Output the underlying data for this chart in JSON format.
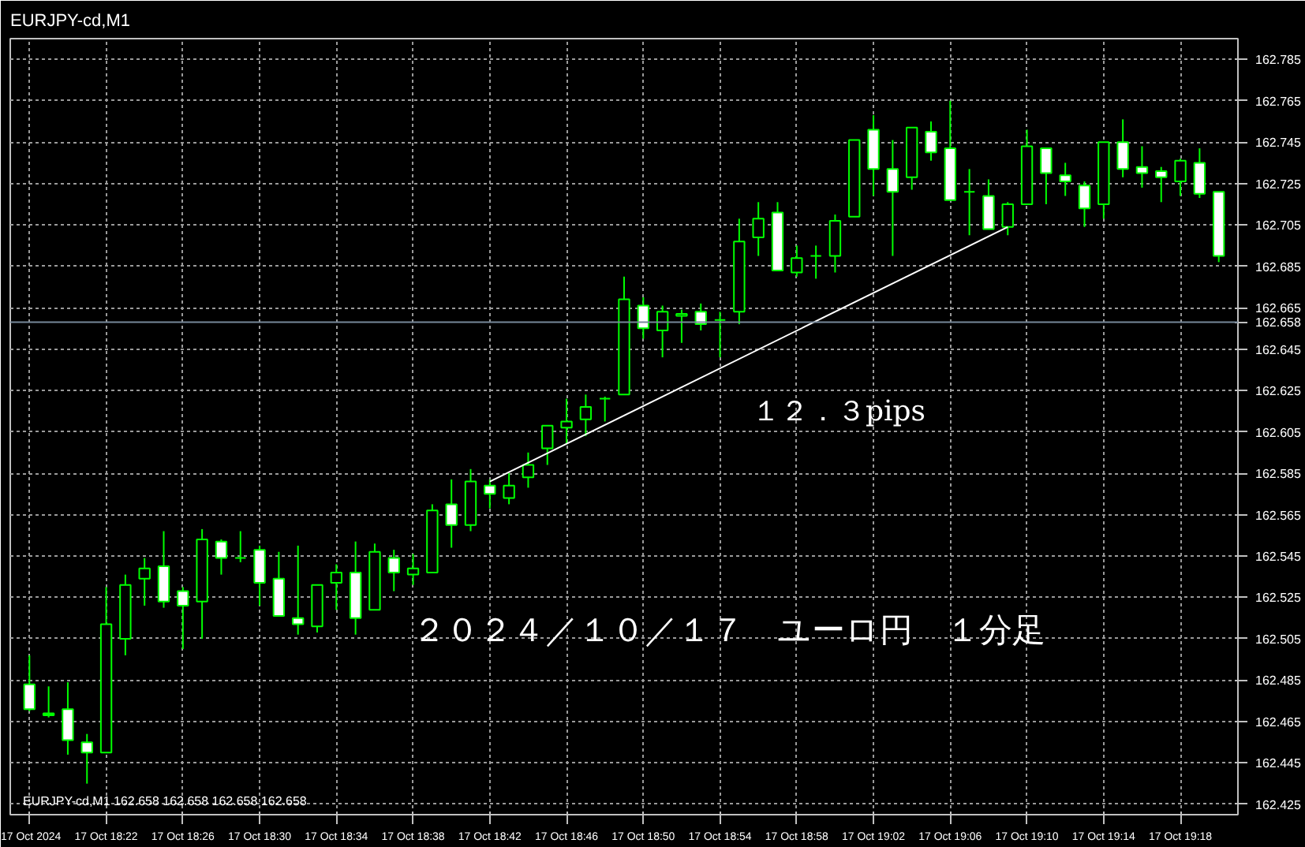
{
  "chart_data": {
    "type": "candlestick",
    "title": "EURJPY-cd,M1",
    "subtitle": "EURJPY-cd,M1  162.658 162.658 162.658 162.658",
    "x": [
      "2024-10-17T18:18",
      "2024-10-17T18:19",
      "2024-10-17T18:20",
      "2024-10-17T18:21",
      "2024-10-17T18:22",
      "2024-10-17T18:23",
      "2024-10-17T18:24",
      "2024-10-17T18:25",
      "2024-10-17T18:26",
      "2024-10-17T18:27",
      "2024-10-17T18:28",
      "2024-10-17T18:29",
      "2024-10-17T18:30",
      "2024-10-17T18:31",
      "2024-10-17T18:32",
      "2024-10-17T18:33",
      "2024-10-17T18:34",
      "2024-10-17T18:35",
      "2024-10-17T18:36",
      "2024-10-17T18:37",
      "2024-10-17T18:38",
      "2024-10-17T18:39",
      "2024-10-17T18:40",
      "2024-10-17T18:41",
      "2024-10-17T18:42",
      "2024-10-17T18:43",
      "2024-10-17T18:44",
      "2024-10-17T18:45",
      "2024-10-17T18:46",
      "2024-10-17T18:47",
      "2024-10-17T18:48",
      "2024-10-17T18:49",
      "2024-10-17T18:50",
      "2024-10-17T18:51",
      "2024-10-17T18:52",
      "2024-10-17T18:53",
      "2024-10-17T18:54",
      "2024-10-17T18:55",
      "2024-10-17T18:56",
      "2024-10-17T18:57",
      "2024-10-17T18:58",
      "2024-10-17T18:59",
      "2024-10-17T19:00",
      "2024-10-17T19:01",
      "2024-10-17T19:02",
      "2024-10-17T19:03",
      "2024-10-17T19:04",
      "2024-10-17T19:05",
      "2024-10-17T19:06",
      "2024-10-17T19:07",
      "2024-10-17T19:08",
      "2024-10-17T19:09",
      "2024-10-17T19:10",
      "2024-10-17T19:11",
      "2024-10-17T19:12",
      "2024-10-17T19:13",
      "2024-10-17T19:14",
      "2024-10-17T19:15",
      "2024-10-17T19:16",
      "2024-10-17T19:17",
      "2024-10-17T19:18",
      "2024-10-17T19:19",
      "2024-10-17T19:20"
    ],
    "ohlc": [
      [
        162.483,
        162.497,
        162.47,
        162.471
      ],
      [
        162.468,
        162.482,
        162.467,
        162.469
      ],
      [
        162.471,
        162.484,
        162.449,
        162.456
      ],
      [
        162.455,
        162.459,
        162.435,
        162.45
      ],
      [
        162.45,
        162.53,
        162.45,
        162.512
      ],
      [
        162.505,
        162.536,
        162.497,
        162.531
      ],
      [
        162.534,
        162.544,
        162.521,
        162.539
      ],
      [
        162.54,
        162.557,
        162.52,
        162.523
      ],
      [
        162.528,
        162.53,
        162.5,
        162.521
      ],
      [
        162.523,
        162.558,
        162.505,
        162.553
      ],
      [
        162.552,
        162.553,
        162.536,
        162.544
      ],
      [
        162.544,
        162.557,
        162.542,
        162.544
      ],
      [
        162.548,
        162.55,
        162.521,
        162.532
      ],
      [
        162.534,
        162.547,
        162.516,
        162.516
      ],
      [
        162.515,
        162.55,
        162.507,
        162.512
      ],
      [
        162.511,
        162.531,
        162.508,
        162.531
      ],
      [
        162.532,
        162.541,
        162.519,
        162.537
      ],
      [
        162.537,
        162.552,
        162.507,
        162.515
      ],
      [
        162.519,
        162.551,
        162.519,
        162.547
      ],
      [
        162.544,
        162.548,
        162.528,
        162.537
      ],
      [
        162.536,
        162.546,
        162.531,
        162.539
      ],
      [
        162.537,
        162.57,
        162.537,
        162.567
      ],
      [
        162.57,
        162.582,
        162.549,
        162.56
      ],
      [
        162.56,
        162.587,
        162.557,
        162.581
      ],
      [
        162.579,
        162.582,
        162.568,
        162.575
      ],
      [
        162.573,
        162.585,
        162.57,
        162.579
      ],
      [
        162.583,
        162.595,
        162.578,
        162.589
      ],
      [
        162.597,
        162.608,
        162.589,
        162.608
      ],
      [
        162.607,
        162.621,
        162.599,
        162.61
      ],
      [
        162.611,
        162.623,
        162.603,
        162.617
      ],
      [
        162.621,
        162.622,
        162.61,
        162.621
      ],
      [
        162.623,
        162.68,
        162.623,
        162.669
      ],
      [
        162.666,
        162.67,
        162.65,
        162.655
      ],
      [
        162.654,
        162.666,
        162.641,
        162.663
      ],
      [
        162.661,
        162.664,
        162.648,
        162.662
      ],
      [
        162.663,
        162.667,
        162.654,
        162.657
      ],
      [
        162.659,
        162.663,
        162.641,
        162.659
      ],
      [
        162.663,
        162.708,
        162.657,
        162.697
      ],
      [
        162.699,
        162.716,
        162.69,
        162.708
      ],
      [
        162.711,
        162.716,
        162.683,
        162.683
      ],
      [
        162.682,
        162.695,
        162.68,
        162.689
      ],
      [
        162.69,
        162.695,
        162.679,
        162.69
      ],
      [
        162.69,
        162.71,
        162.682,
        162.707
      ],
      [
        162.709,
        162.746,
        162.709,
        162.746
      ],
      [
        162.751,
        162.758,
        162.719,
        162.732
      ],
      [
        162.732,
        162.746,
        162.69,
        162.721
      ],
      [
        162.728,
        162.752,
        162.722,
        162.752
      ],
      [
        162.75,
        162.755,
        162.736,
        162.74
      ],
      [
        162.742,
        162.765,
        162.717,
        162.717
      ],
      [
        162.721,
        162.732,
        162.7,
        162.721
      ],
      [
        162.719,
        162.727,
        162.703,
        162.703
      ],
      [
        162.704,
        162.716,
        162.7,
        162.715
      ],
      [
        162.715,
        162.751,
        162.715,
        162.743
      ],
      [
        162.742,
        162.742,
        162.715,
        162.73
      ],
      [
        162.729,
        162.735,
        162.719,
        162.726
      ],
      [
        162.724,
        162.726,
        162.704,
        162.713
      ],
      [
        162.715,
        162.745,
        162.708,
        162.745
      ],
      [
        162.745,
        162.756,
        162.728,
        162.732
      ],
      [
        162.733,
        162.743,
        162.723,
        162.73
      ],
      [
        162.731,
        162.733,
        162.716,
        162.728
      ],
      [
        162.726,
        162.737,
        162.719,
        162.736
      ],
      [
        162.735,
        162.742,
        162.718,
        162.72
      ],
      [
        162.721,
        162.721,
        162.687,
        162.69
      ]
    ],
    "color": "#00ff00",
    "colors": [
      "#ffffff",
      "#00ff00",
      "#ffffff",
      "#ffffff",
      "#000000",
      "#000000",
      "#000000",
      "#ffffff",
      "#ffffff",
      "#000000",
      "#ffffff",
      "#00ff00",
      "#ffffff",
      "#ffffff",
      "#ffffff",
      "#000000",
      "#000000",
      "#ffffff",
      "#000000",
      "#ffffff",
      "#000000",
      "#000000",
      "#ffffff",
      "#000000",
      "#ffffff",
      "#000000",
      "#000000",
      "#000000",
      "#000000",
      "#000000",
      "#00ff00",
      "#000000",
      "#ffffff",
      "#000000",
      "#000000",
      "#ffffff",
      "#00ff00",
      "#000000",
      "#000000",
      "#ffffff",
      "#000000",
      "#00ff00",
      "#000000",
      "#000000",
      "#ffffff",
      "#ffffff",
      "#000000",
      "#ffffff",
      "#ffffff",
      "#00ff00",
      "#ffffff",
      "#000000",
      "#000000",
      "#ffffff",
      "#ffffff",
      "#ffffff",
      "#000000",
      "#ffffff",
      "#ffffff",
      "#ffffff",
      "#000000",
      "#ffffff",
      "#ffffff"
    ],
    "series": [
      {
        "type": "line",
        "x": [
          "2024-10-17T18:42",
          "2024-10-17T19:09"
        ],
        "values": [
          162.581,
          162.704
        ],
        "color": "#ffffff"
      }
    ],
    "xlim": [
      "2024-10-17T18:17",
      "2024-10-17T19:21"
    ],
    "xticks": [
      {
        "value": "2024-10-17T18:18",
        "label": "17 Oct 2024"
      },
      {
        "value": "2024-10-17T18:22",
        "label": "17 Oct 18:22"
      },
      {
        "value": "2024-10-17T18:26",
        "label": "17 Oct 18:26"
      },
      {
        "value": "2024-10-17T18:30",
        "label": "17 Oct 18:30"
      },
      {
        "value": "2024-10-17T18:34",
        "label": "17 Oct 18:34"
      },
      {
        "value": "2024-10-17T18:38",
        "label": "17 Oct 18:38"
      },
      {
        "value": "2024-10-17T18:42",
        "label": "17 Oct 18:42"
      },
      {
        "value": "2024-10-17T18:46",
        "label": "17 Oct 18:46"
      },
      {
        "value": "2024-10-17T18:50",
        "label": "17 Oct 18:50"
      },
      {
        "value": "2024-10-17T18:54",
        "label": "17 Oct 18:54"
      },
      {
        "value": "2024-10-17T18:58",
        "label": "17 Oct 18:58"
      },
      {
        "value": "2024-10-17T19:02",
        "label": "17 Oct 19:02"
      },
      {
        "value": "2024-10-17T19:06",
        "label": "17 Oct 19:06"
      },
      {
        "value": "2024-10-17T19:10",
        "label": "17 Oct 19:10"
      },
      {
        "value": "2024-10-17T19:14",
        "label": "17 Oct 19:14"
      },
      {
        "value": "2024-10-17T19:18",
        "label": "17 Oct 19:18"
      }
    ],
    "ylim": [
      162.42,
      162.795
    ],
    "yticks": [
      162.425,
      162.445,
      162.465,
      162.485,
      162.505,
      162.525,
      162.545,
      162.565,
      162.585,
      162.605,
      162.625,
      162.645,
      162.665,
      162.685,
      162.705,
      162.725,
      162.745,
      162.765,
      162.785
    ],
    "ref_lines": [
      {
        "axis": "y",
        "value": 162.658,
        "label": "162.658",
        "color": "#778899"
      }
    ],
    "annotations": [
      "１２．３pips",
      "２０２４／１０／１７　ユーロ円　１分足"
    ],
    "grid": true
  }
}
